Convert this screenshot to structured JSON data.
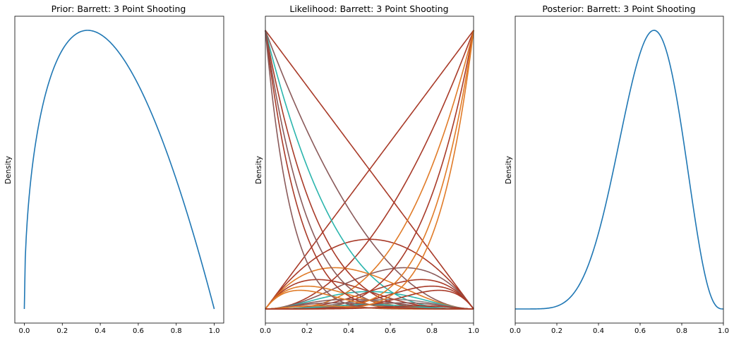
{
  "chart_data": [
    {
      "type": "line",
      "title": "Prior: Barrett: 3 Point Shooting",
      "ylabel": "Density",
      "xlim": [
        -0.05,
        1.05
      ],
      "xticks": [
        "0.0",
        "0.2",
        "0.4",
        "0.6",
        "0.8",
        "1.0"
      ],
      "ytick_labels": false,
      "series": [
        {
          "distribution": "beta",
          "alpha": 1.5,
          "beta": 2.0,
          "color": "#1f77b4"
        }
      ]
    },
    {
      "type": "line",
      "title": "Likelihood: Barrett: 3 Point Shooting",
      "ylabel": "Density",
      "xlim": [
        0,
        1
      ],
      "xticks": [
        "0.0",
        "0.2",
        "0.4",
        "0.6",
        "0.8",
        "1.0"
      ],
      "ytick_labels": false,
      "series_note_counts_of_n": [
        {
          "k": 0,
          "n": 1,
          "color": "#a83a28"
        },
        {
          "k": 1,
          "n": 1,
          "color": "#a83a28"
        },
        {
          "k": 0,
          "n": 2,
          "color": "#8a5a5a"
        },
        {
          "k": 1,
          "n": 2,
          "color": "#a83a28"
        },
        {
          "k": 2,
          "n": 2,
          "color": "#a83a28"
        },
        {
          "k": 0,
          "n": 3,
          "color": "#2bb5ad"
        },
        {
          "k": 1,
          "n": 3,
          "color": "#e07b28"
        },
        {
          "k": 2,
          "n": 3,
          "color": "#8a5a5a"
        },
        {
          "k": 3,
          "n": 3,
          "color": "#e07b28"
        },
        {
          "k": 0,
          "n": 4,
          "color": "#a83a28"
        },
        {
          "k": 1,
          "n": 4,
          "color": "#a83a28"
        },
        {
          "k": 2,
          "n": 4,
          "color": "#2bb5ad"
        },
        {
          "k": 3,
          "n": 4,
          "color": "#a83a28"
        },
        {
          "k": 4,
          "n": 4,
          "color": "#a83a28"
        },
        {
          "k": 0,
          "n": 5,
          "color": "#8a5a5a"
        },
        {
          "k": 1,
          "n": 5,
          "color": "#e07b28"
        },
        {
          "k": 2,
          "n": 5,
          "color": "#8a5a5a"
        },
        {
          "k": 3,
          "n": 5,
          "color": "#8a8080"
        },
        {
          "k": 4,
          "n": 5,
          "color": "#a83a28"
        },
        {
          "k": 5,
          "n": 5,
          "color": "#e07b28"
        },
        {
          "k": 0,
          "n": 6,
          "color": "#a83a28"
        },
        {
          "k": 1,
          "n": 6,
          "color": "#e07b28"
        },
        {
          "k": 2,
          "n": 6,
          "color": "#8a5a5a"
        },
        {
          "k": 3,
          "n": 6,
          "color": "#2bb5ad"
        },
        {
          "k": 4,
          "n": 6,
          "color": "#8a5a5a"
        },
        {
          "k": 5,
          "n": 6,
          "color": "#a83a28"
        },
        {
          "k": 6,
          "n": 6,
          "color": "#e07b28"
        },
        {
          "k": 0,
          "n": 8,
          "color": "#8a5a5a"
        },
        {
          "k": 2,
          "n": 8,
          "color": "#e07b28"
        },
        {
          "k": 4,
          "n": 8,
          "color": "#a83a28"
        },
        {
          "k": 6,
          "n": 8,
          "color": "#a83a28"
        }
      ]
    },
    {
      "type": "line",
      "title": "Posterior: Barrett: 3 Point Shooting",
      "ylabel": "Density",
      "xlim": [
        0,
        1
      ],
      "xticks": [
        "0.0",
        "0.2",
        "0.4",
        "0.6",
        "0.8",
        "1.0"
      ],
      "ytick_labels": false,
      "series": [
        {
          "distribution": "beta",
          "alpha": 7.0,
          "beta": 4.0,
          "color": "#1f77b4"
        }
      ]
    }
  ]
}
